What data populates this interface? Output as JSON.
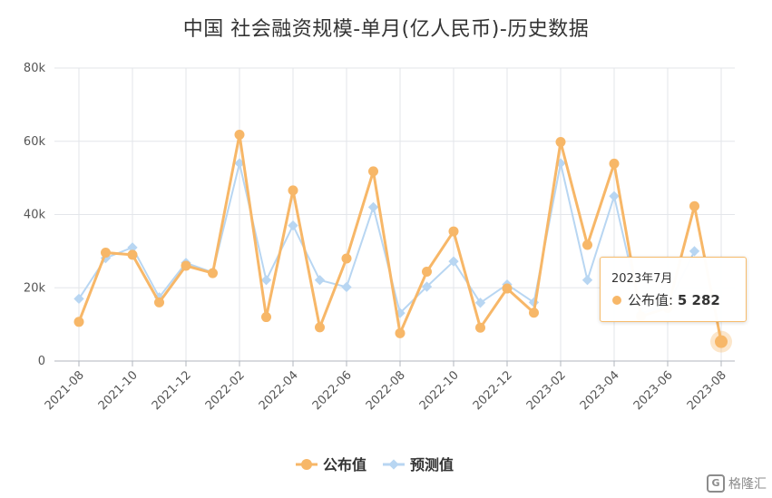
{
  "chart_data": {
    "type": "line",
    "title": "中国 社会融资规模-单月(亿人民币)-历史数据",
    "x": [
      "2021-08",
      "2021-09",
      "2021-10",
      "2021-11",
      "2021-12",
      "2022-01",
      "2022-02",
      "2022-03",
      "2022-04",
      "2022-05",
      "2022-06",
      "2022-07",
      "2022-08",
      "2022-09",
      "2022-10",
      "2022-11",
      "2022-12",
      "2023-01",
      "2023-02",
      "2023-03",
      "2023-04",
      "2023-05",
      "2023-06",
      "2023-07",
      "2023-08"
    ],
    "x_tick_labels": [
      "2021-08",
      "2021-10",
      "2021-12",
      "2022-02",
      "2022-04",
      "2022-06",
      "2022-08",
      "2022-10",
      "2022-12",
      "2023-02",
      "2023-04",
      "2023-06",
      "2023-08"
    ],
    "series": [
      {
        "name": "公布值",
        "color": "#f7b768",
        "values": [
          10700,
          29600,
          29000,
          16000,
          26000,
          24000,
          61800,
          12000,
          46600,
          9200,
          28000,
          51800,
          7600,
          24400,
          35400,
          9100,
          19800,
          13200,
          59800,
          31700,
          53900,
          12200,
          14500,
          42300,
          5282
        ]
      },
      {
        "name": "预测值",
        "color": "#b8d6f2",
        "values": [
          17000,
          28100,
          31000,
          17400,
          26800,
          24200,
          54000,
          22100,
          37000,
          22100,
          20200,
          42000,
          13100,
          20300,
          27200,
          15900,
          20900,
          16000,
          54000,
          22100,
          45000,
          13100,
          15000,
          30000,
          null
        ]
      }
    ],
    "yaxis_tick_labels": [
      "0",
      "20k",
      "40k",
      "60k",
      "80k"
    ],
    "ylim": [
      0,
      80000
    ],
    "grid": true,
    "legend_position": "bottom-center",
    "tooltip": {
      "date": "2023年7月",
      "series": "公布值",
      "value": "5 282"
    }
  },
  "watermark": {
    "logo": "G",
    "text": "格隆汇"
  }
}
